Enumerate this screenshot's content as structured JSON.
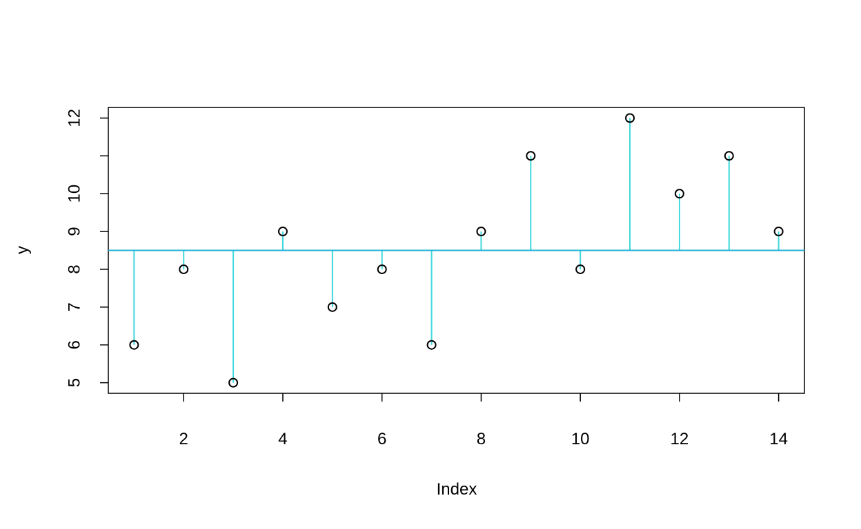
{
  "chart_data": {
    "type": "scatter",
    "x": [
      1,
      2,
      3,
      4,
      5,
      6,
      7,
      8,
      9,
      10,
      11,
      12,
      13,
      14
    ],
    "values": [
      6,
      8,
      5,
      9,
      7,
      8,
      6,
      9,
      11,
      8,
      12,
      10,
      11,
      9
    ],
    "x_label": "Index",
    "y_label": "y",
    "xlim": [
      0.48,
      14.52
    ],
    "ylim": [
      4.72,
      12.28
    ],
    "xticks": [
      2,
      4,
      6,
      8,
      10,
      12,
      14
    ],
    "yticks": [
      5,
      6,
      7,
      8,
      9,
      10,
      {
        "value": 11,
        "label": null
      },
      12
    ],
    "hline": 8.5,
    "hline_color": "#1fb0d8",
    "segment_color": "#3fd8dc",
    "point_color": "#000000"
  }
}
